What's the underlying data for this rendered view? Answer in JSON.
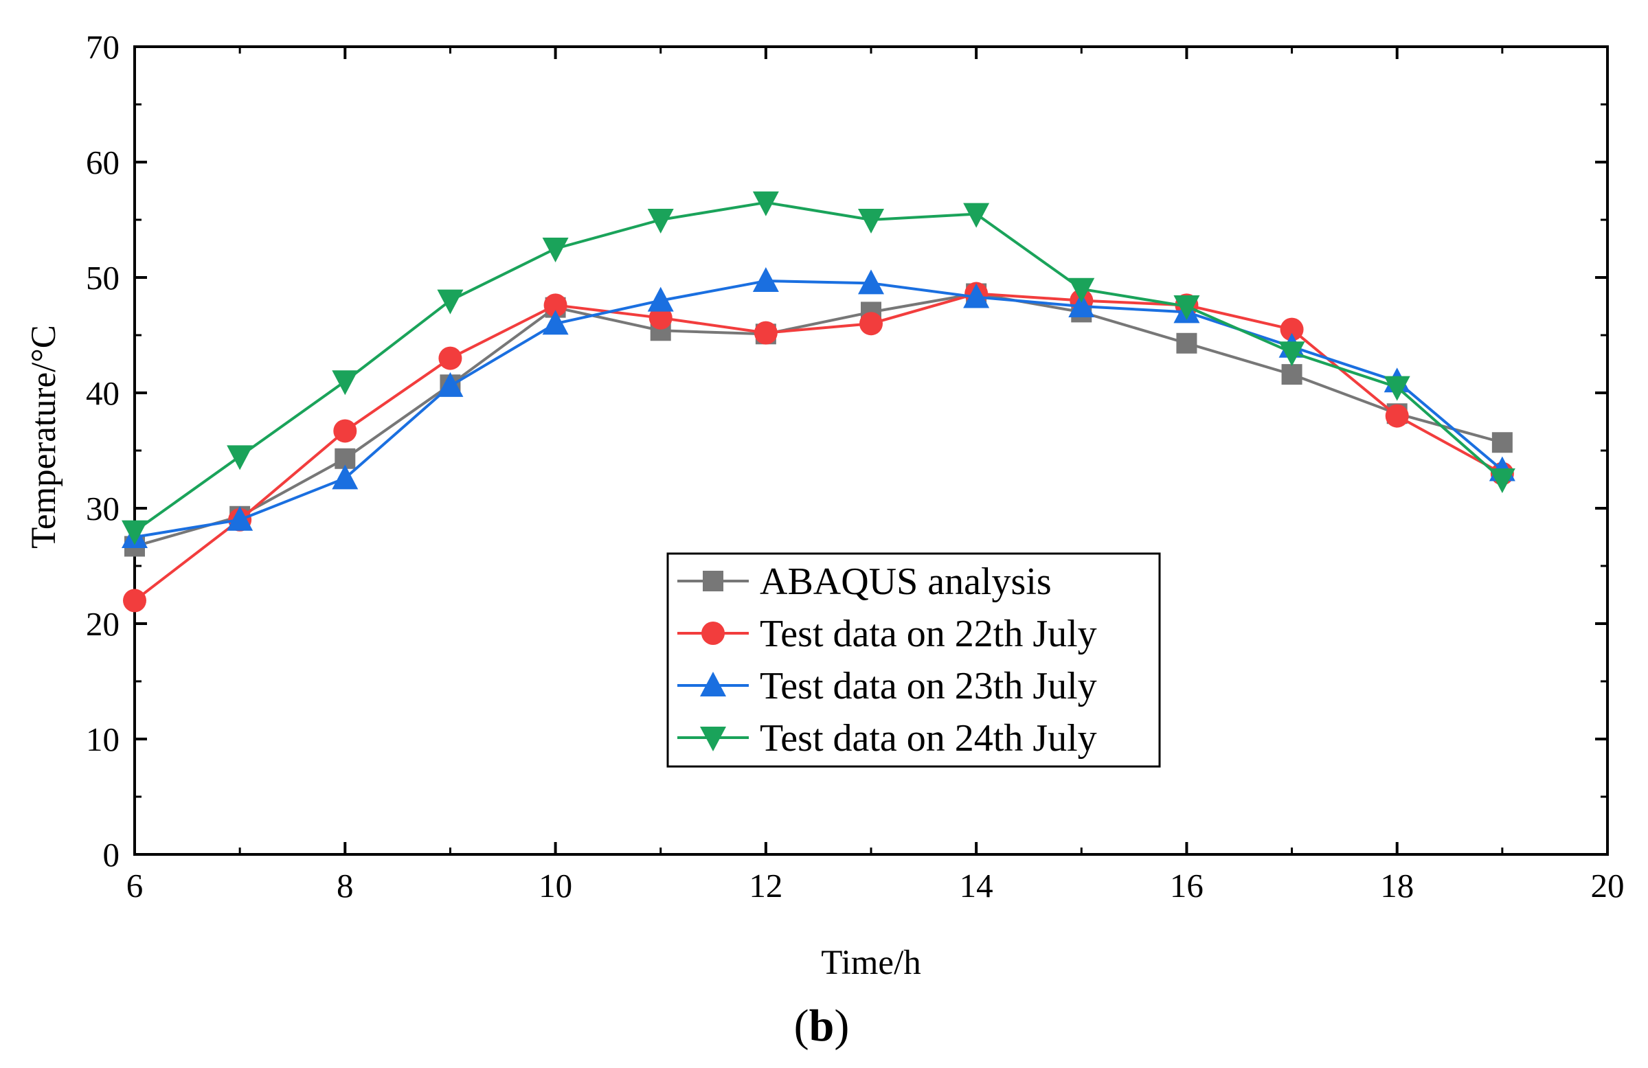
{
  "chart_data": {
    "type": "line",
    "xlabel": "Time/h",
    "ylabel": "Temperature/°C",
    "panel_label": "b",
    "xlim": [
      6,
      20
    ],
    "ylim": [
      0,
      70
    ],
    "xticks": [
      "6",
      "8",
      "10",
      "12",
      "14",
      "16",
      "18",
      "20"
    ],
    "yticks": [
      "0",
      "10",
      "20",
      "30",
      "40",
      "50",
      "60",
      "70"
    ],
    "grid": false,
    "legend_position": "center-bottom",
    "x": [
      6,
      7,
      8,
      9,
      10,
      11,
      12,
      13,
      14,
      15,
      16,
      17,
      18,
      19
    ],
    "series": [
      {
        "name": "ABAQUS analysis",
        "color": "#777777",
        "marker": "square",
        "values": [
          26.7,
          29.3,
          34.3,
          40.7,
          47.4,
          45.4,
          45.1,
          47.0,
          48.6,
          47.0,
          44.3,
          41.6,
          38.2,
          35.7
        ]
      },
      {
        "name": "Test data on 22th July",
        "color": "#f23d3d",
        "marker": "circle",
        "values": [
          22.0,
          29.0,
          36.7,
          43.0,
          47.6,
          46.5,
          45.2,
          46.0,
          48.6,
          48.0,
          47.6,
          45.5,
          38.0,
          33.0
        ]
      },
      {
        "name": "Test data on 23th July",
        "color": "#1a6fe0",
        "marker": "triangle-up",
        "values": [
          27.5,
          29.0,
          32.6,
          40.6,
          46.0,
          48.0,
          49.7,
          49.5,
          48.3,
          47.5,
          47.0,
          44.0,
          41.0,
          33.3
        ]
      },
      {
        "name": "Test data on 24th July",
        "color": "#1aa35a",
        "marker": "triangle-down",
        "values": [
          28.0,
          34.5,
          41.0,
          48.0,
          52.5,
          55.0,
          56.5,
          55.0,
          55.5,
          49.0,
          47.5,
          43.5,
          40.5,
          32.5
        ]
      }
    ]
  }
}
